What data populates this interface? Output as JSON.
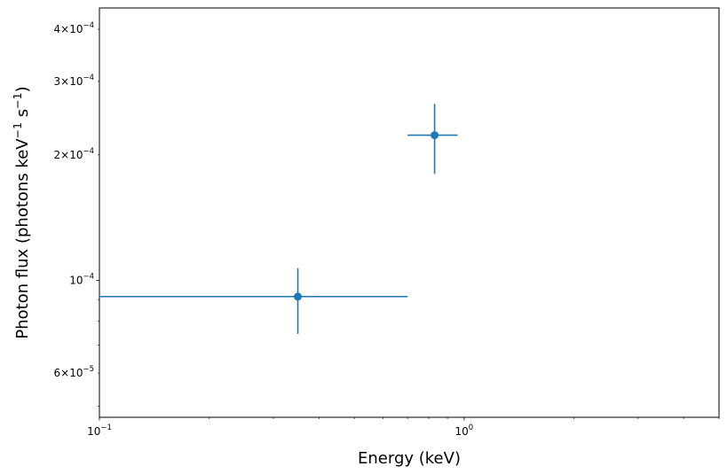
{
  "chart_data": {
    "type": "scatter",
    "xscale": "log",
    "yscale": "log",
    "xlim": [
      0.1,
      5.0
    ],
    "ylim": [
      4.7e-05,
      0.00045
    ],
    "xlabel": "Energy (keV)",
    "ylabel": {
      "prefix": "Photon flux (photons keV",
      "sup1": "−1",
      "middle": " s",
      "sup2": "−1",
      "suffix": ")"
    },
    "grid": false,
    "color": "#1f77b4",
    "x_ticks": [
      {
        "value": 0.1,
        "base": "10",
        "exp": "−1"
      },
      {
        "value": 1.0,
        "base": "10",
        "exp": "0"
      }
    ],
    "y_ticks": [
      {
        "value": 6e-05,
        "mant": "6",
        "base": "10",
        "exp": "−5"
      },
      {
        "value": 0.0001,
        "mant": "",
        "base": "10",
        "exp": "−4"
      },
      {
        "value": 0.0002,
        "mant": "2",
        "base": "10",
        "exp": "−4"
      },
      {
        "value": 0.0003,
        "mant": "3",
        "base": "10",
        "exp": "−4"
      },
      {
        "value": 0.0004,
        "mant": "4",
        "base": "10",
        "exp": "−4"
      }
    ],
    "points": [
      {
        "x": 0.35,
        "y": 9.15e-05,
        "xerr": [
          0.1,
          0.7
        ],
        "yerr": [
          7.45e-05,
          0.000107
        ]
      },
      {
        "x": 0.83,
        "y": 0.000223,
        "xerr": [
          0.7,
          0.96
        ],
        "yerr": [
          0.00018,
          0.000265
        ]
      }
    ]
  }
}
